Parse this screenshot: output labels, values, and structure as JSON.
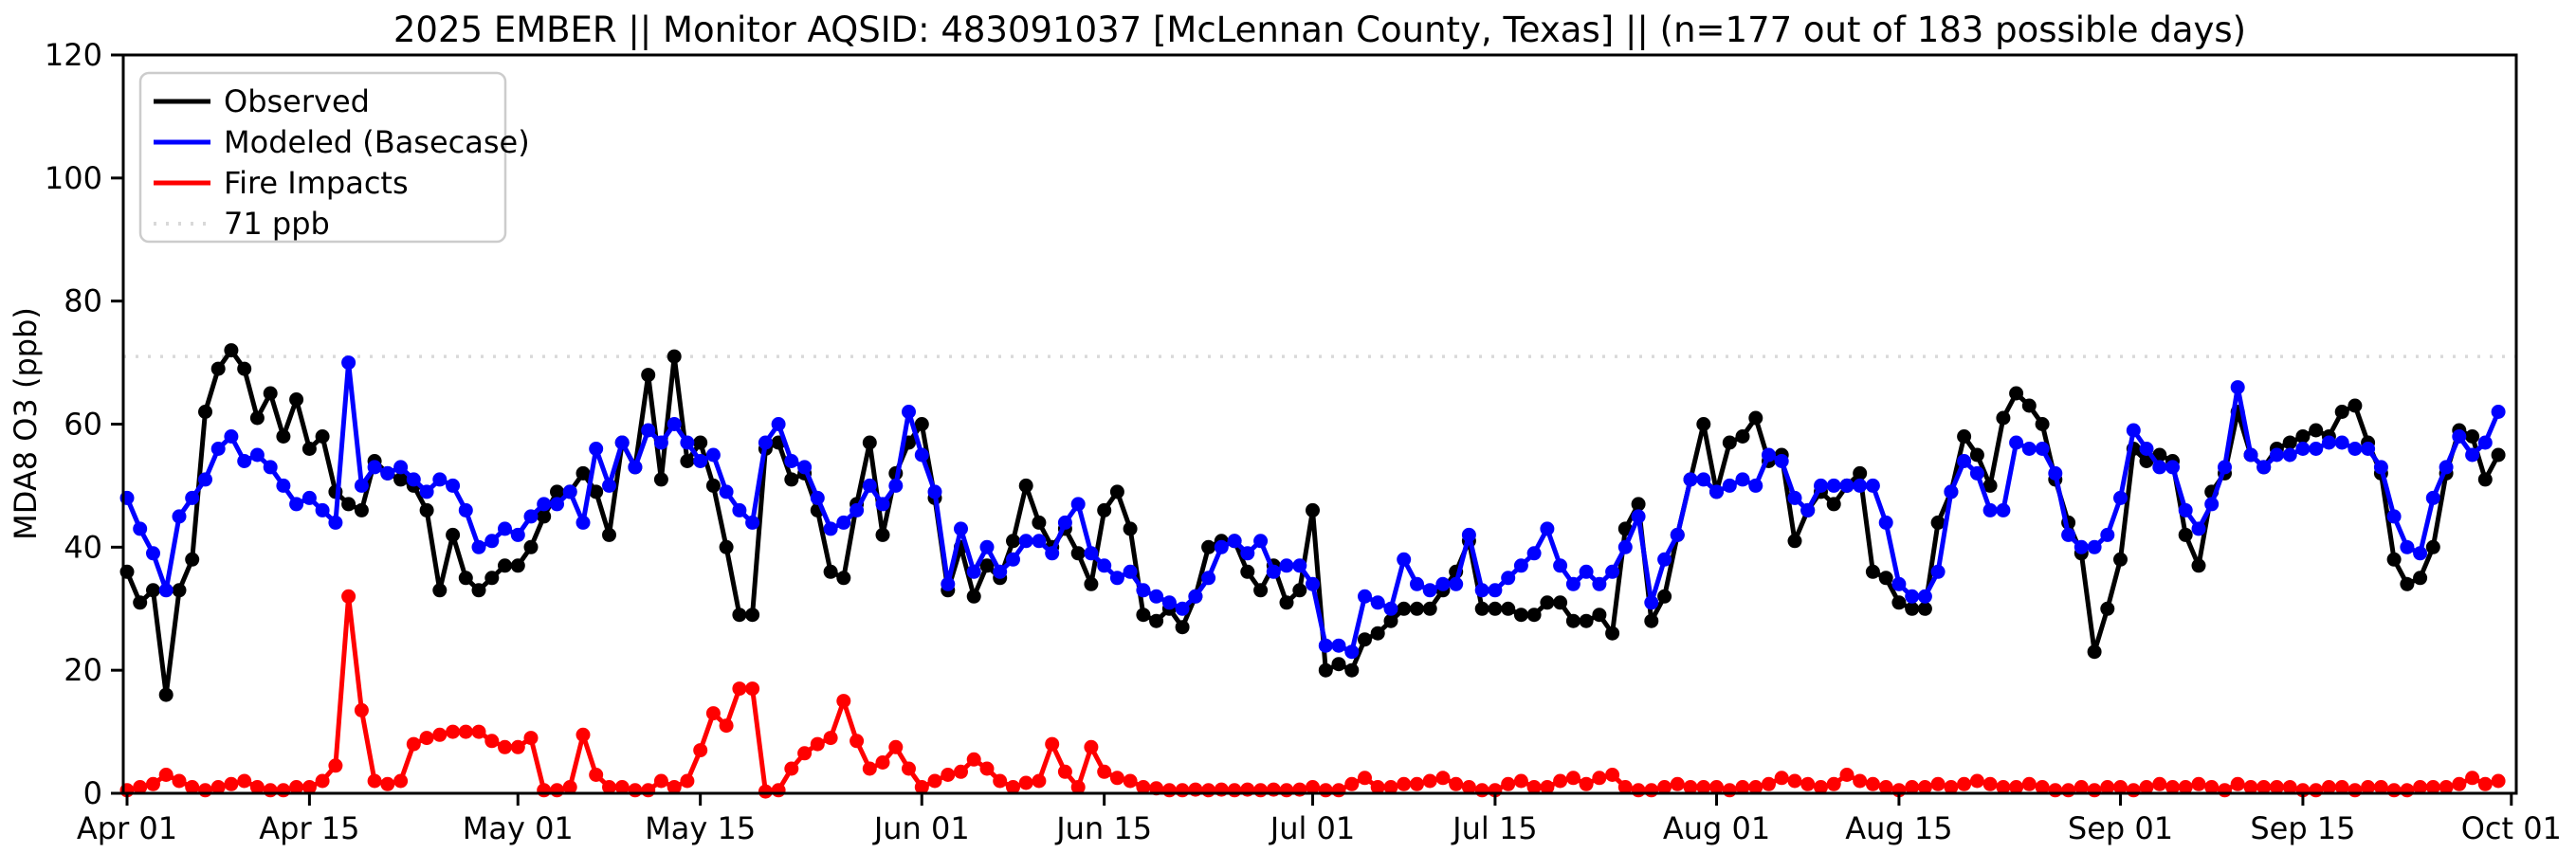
{
  "title": "2025 EMBER || Monitor AQSID: 483091037 [McLennan County, Texas] || (n=177 out of 183 possible days)",
  "chart_data": {
    "type": "line",
    "title": "2025 EMBER || Monitor AQSID: 483091037 [McLennan County, Texas] || (n=177 out of 183 possible days)",
    "ylabel": "MDA8 O3 (ppb)",
    "ylim": [
      0,
      120
    ],
    "yticks": [
      0,
      20,
      40,
      60,
      80,
      100,
      120
    ],
    "x_unit": "day",
    "x_range_labels": [
      "Apr 01",
      "Oct 01"
    ],
    "n_days": 183,
    "grid": "off",
    "legend_position": "upper left",
    "background_color": "#ffffff",
    "x_ticks": [
      {
        "label": "Apr 01",
        "day": 0
      },
      {
        "label": "Apr 15",
        "day": 14
      },
      {
        "label": "May 01",
        "day": 30
      },
      {
        "label": "May 15",
        "day": 44
      },
      {
        "label": "Jun 01",
        "day": 61
      },
      {
        "label": "Jun 15",
        "day": 75
      },
      {
        "label": "Jul 01",
        "day": 91
      },
      {
        "label": "Jul 15",
        "day": 105
      },
      {
        "label": "Aug 01",
        "day": 122
      },
      {
        "label": "Aug 15",
        "day": 136
      },
      {
        "label": "Sep 01",
        "day": 153
      },
      {
        "label": "Sep 15",
        "day": 167
      },
      {
        "label": "Oct 01",
        "day": 183
      }
    ],
    "reference_line": {
      "label": "71 ppb",
      "value": 71,
      "color": "#d9d9d9",
      "style": "dotted"
    },
    "series": [
      {
        "name": "Observed",
        "color": "#000000",
        "values": [
          36,
          31,
          33,
          16,
          33,
          38,
          62,
          69,
          72,
          69,
          61,
          65,
          58,
          64,
          56,
          58,
          49,
          47,
          46,
          54,
          52,
          51,
          50,
          46,
          33,
          42,
          35,
          33,
          35,
          37,
          37,
          40,
          45,
          49,
          49,
          52,
          49,
          42,
          57,
          53,
          68,
          51,
          71,
          54,
          57,
          50,
          40,
          29,
          29,
          56,
          57,
          51,
          52,
          46,
          36,
          35,
          47,
          57,
          42,
          52,
          57,
          60,
          48,
          33,
          40,
          32,
          37,
          35,
          41,
          50,
          44,
          40,
          43,
          39,
          34,
          46,
          49,
          43,
          29,
          28,
          30,
          27,
          32,
          40,
          41,
          41,
          36,
          33,
          37,
          31,
          33,
          46,
          20,
          21,
          20,
          25,
          26,
          28,
          30,
          30,
          30,
          33,
          36,
          41,
          30,
          30,
          30,
          29,
          29,
          31,
          31,
          28,
          28,
          29,
          26,
          43,
          47,
          28,
          32,
          42,
          51,
          60,
          49,
          57,
          58,
          61,
          54,
          55,
          41,
          46,
          49,
          47,
          50,
          52,
          36,
          35,
          31,
          30,
          30,
          44,
          49,
          58,
          55,
          50,
          61,
          65,
          63,
          60,
          51,
          44,
          39,
          23,
          30,
          38,
          56,
          54,
          55,
          54,
          42,
          37,
          49,
          52,
          62,
          55,
          53,
          56,
          57,
          58,
          59,
          58,
          62,
          63,
          57,
          52,
          38,
          34,
          35,
          40,
          52,
          59,
          58,
          51,
          55
        ]
      },
      {
        "name": "Modeled (Basecase)",
        "color": "#0000ff",
        "values": [
          48,
          43,
          39,
          33,
          45,
          48,
          51,
          56,
          58,
          54,
          55,
          53,
          50,
          47,
          48,
          46,
          44,
          70,
          50,
          53,
          52,
          53,
          51,
          49,
          51,
          50,
          46,
          40,
          41,
          43,
          42,
          45,
          47,
          47,
          49,
          44,
          56,
          50,
          57,
          53,
          59,
          57,
          60,
          57,
          54,
          55,
          49,
          46,
          44,
          57,
          60,
          54,
          53,
          48,
          43,
          44,
          46,
          50,
          47,
          50,
          62,
          55,
          49,
          34,
          43,
          36,
          40,
          36,
          38,
          41,
          41,
          39,
          44,
          47,
          39,
          37,
          35,
          36,
          33,
          32,
          31,
          30,
          32,
          35,
          40,
          41,
          39,
          41,
          36,
          37,
          37,
          34,
          24,
          24,
          23,
          32,
          31,
          30,
          38,
          34,
          33,
          34,
          34,
          42,
          33,
          33,
          35,
          37,
          39,
          43,
          37,
          34,
          36,
          34,
          36,
          40,
          45,
          31,
          38,
          42,
          51,
          51,
          49,
          50,
          51,
          50,
          55,
          54,
          48,
          46,
          50,
          50,
          50,
          50,
          50,
          44,
          34,
          32,
          32,
          36,
          49,
          54,
          52,
          46,
          46,
          57,
          56,
          56,
          52,
          42,
          40,
          40,
          42,
          48,
          59,
          56,
          53,
          53,
          46,
          43,
          47,
          53,
          66,
          55,
          53,
          55,
          55,
          56,
          56,
          57,
          57,
          56,
          56,
          53,
          45,
          40,
          39,
          48,
          53,
          58,
          55,
          57,
          62
        ]
      },
      {
        "name": "Fire Impacts",
        "color": "#ff0000",
        "values": [
          0.5,
          1,
          1.5,
          3,
          2,
          1,
          0.5,
          1,
          1.5,
          2,
          1,
          0.5,
          0.5,
          1,
          1,
          2,
          4.5,
          32,
          13.5,
          2,
          1.5,
          2,
          8,
          9,
          9.5,
          10,
          10,
          10,
          8.5,
          7.5,
          7.5,
          9,
          0.5,
          0.5,
          1,
          9.5,
          3,
          1,
          1,
          0.5,
          0.5,
          2,
          1,
          2,
          7,
          13,
          11,
          17,
          17,
          0.3,
          0.5,
          4,
          6.5,
          8,
          9,
          15,
          8.5,
          4,
          5,
          7.5,
          4,
          1,
          2,
          3,
          3.5,
          5.5,
          4,
          2,
          1,
          1.7,
          2,
          8,
          3.5,
          1,
          7.5,
          3.5,
          2.5,
          2,
          1,
          0.8,
          0.5,
          0.5,
          0.6,
          0.5,
          0.6,
          0.5,
          0.6,
          0.5,
          0.6,
          0.5,
          0.6,
          1,
          0.5,
          0.5,
          1.5,
          2.5,
          1,
          1,
          1.5,
          1.5,
          2,
          2.5,
          1.5,
          1,
          0.5,
          0.5,
          1.5,
          2,
          1,
          1,
          2,
          2.5,
          1.5,
          2.5,
          3,
          1,
          0.5,
          0.5,
          1,
          1.5,
          1,
          1,
          1,
          0.5,
          1,
          1,
          1.5,
          2.5,
          2,
          1.5,
          1,
          1.5,
          3,
          2,
          1.5,
          1,
          0.5,
          1,
          1,
          1.5,
          1,
          1.5,
          2,
          1.5,
          1,
          1,
          1.5,
          1,
          0.5,
          0.5,
          1,
          0.5,
          1,
          1,
          0.5,
          1,
          1.5,
          1,
          1,
          1.5,
          1,
          0.5,
          1.5,
          1,
          1,
          1,
          1,
          0.5,
          0.5,
          1,
          1,
          0.5,
          1,
          1,
          0.5,
          0.5,
          1,
          1,
          1,
          1.5,
          2.5,
          1.5,
          2
        ]
      }
    ]
  },
  "legend": {
    "items": [
      {
        "label": "Observed"
      },
      {
        "label": "Modeled (Basecase)"
      },
      {
        "label": "Fire Impacts"
      },
      {
        "label": "71 ppb"
      }
    ]
  }
}
